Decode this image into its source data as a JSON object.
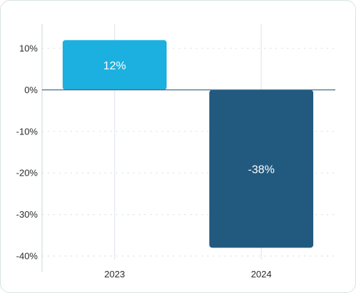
{
  "chart_data": {
    "type": "bar",
    "categories": [
      "2023",
      "2024"
    ],
    "values": [
      12,
      -38
    ],
    "data_labels": [
      "12%",
      "-38%"
    ],
    "ylim": [
      -40,
      10
    ],
    "yticks": [
      10,
      0,
      -10,
      -20,
      -30,
      -40
    ],
    "ytick_labels": [
      "10%",
      "0%",
      "-10%",
      "-20%",
      "-30%",
      "-40%"
    ],
    "grid": true,
    "colors": [
      "#1cb0e0",
      "#225a7f"
    ],
    "zero_line_color": "#3a6f86",
    "grid_color": "#d9e2e8",
    "title": "",
    "xlabel": "",
    "ylabel": ""
  }
}
